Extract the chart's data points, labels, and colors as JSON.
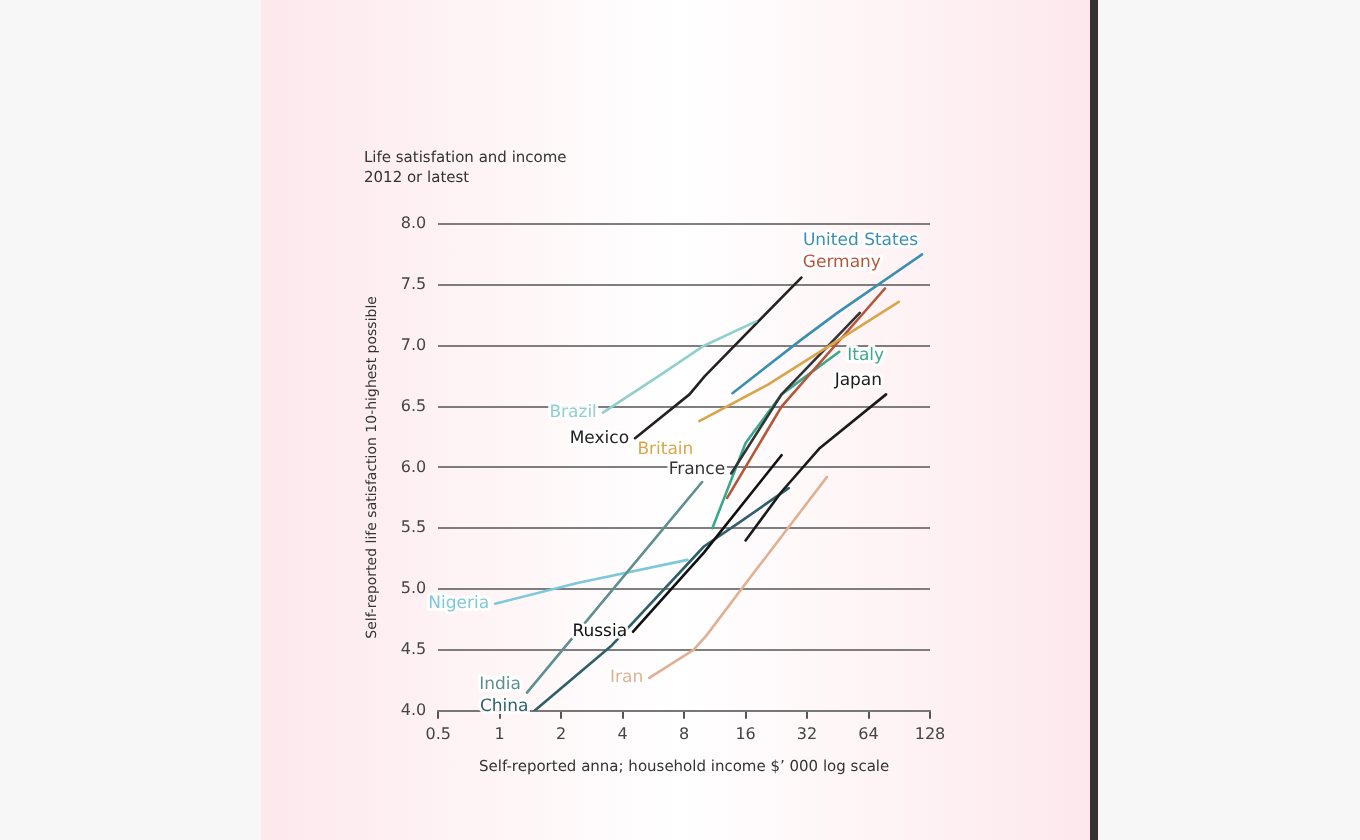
{
  "chart_data": {
    "type": "line",
    "title": "Life satisfation and income",
    "subtitle": "2012 or latest",
    "xlabel": "Self-reported anna; household income $’ 000 log scale",
    "ylabel": "Self-reported life satisfaction 10-highest possible",
    "log": "x",
    "xlim": [
      0.5,
      128
    ],
    "xticks": [
      0.5,
      1,
      2,
      4,
      8,
      16,
      32,
      64,
      128
    ],
    "ylim": [
      4,
      8
    ],
    "yticks": [
      {
        "value": 4,
        "label": "4.0"
      },
      {
        "value": 4.5,
        "label": "4.5"
      },
      {
        "value": 5,
        "label": "5.0"
      },
      {
        "value": 5.5,
        "label": "5.5"
      },
      {
        "value": 6,
        "label": "6.0"
      },
      {
        "value": 6.5,
        "label": "6.5"
      },
      {
        "value": 7,
        "label": "7.0"
      },
      {
        "value": 7.5,
        "label": "7.5"
      },
      {
        "value": 8,
        "label": "8.0"
      }
    ],
    "grid": "y",
    "legend": false,
    "marker": "none",
    "line_style": "solid",
    "series": [
      {
        "name": "Brazil",
        "color": "#8fcfcf",
        "x": [
          3.2,
          6,
          10,
          18
        ],
        "values": [
          6.45,
          6.75,
          7.0,
          7.2
        ]
      },
      {
        "name": "Mexico",
        "color": "#222222",
        "x": [
          4.6,
          8.5,
          10.1,
          30
        ],
        "values": [
          6.24,
          6.6,
          6.75,
          7.56
        ]
      },
      {
        "name": "United States",
        "color": "#3a8fb0",
        "x": [
          13.8,
          30,
          45,
          117
        ],
        "values": [
          6.61,
          7.05,
          7.27,
          7.75
        ]
      },
      {
        "name": "Britain",
        "color": "#d9a54a",
        "x": [
          9.5,
          20.6,
          90
        ],
        "values": [
          6.38,
          6.68,
          7.36
        ]
      },
      {
        "name": "Germany",
        "color": "#b5553a",
        "x": [
          13,
          24,
          77
        ],
        "values": [
          5.75,
          6.5,
          7.47
        ]
      },
      {
        "name": "France",
        "color": "#333333",
        "x": [
          13.6,
          24,
          58
        ],
        "values": [
          5.95,
          6.6,
          7.27
        ]
      },
      {
        "name": "Italy",
        "color": "#3aa88a",
        "x": [
          11,
          16,
          24,
          46
        ],
        "values": [
          5.5,
          6.2,
          6.6,
          6.95
        ]
      },
      {
        "name": "Japan",
        "color": "#1a1a1a",
        "x": [
          16,
          24,
          37,
          78
        ],
        "values": [
          5.4,
          5.8,
          6.16,
          6.6
        ]
      },
      {
        "name": "Russia",
        "color": "#111111",
        "x": [
          4.5,
          10,
          24
        ],
        "values": [
          4.65,
          5.3,
          6.1
        ]
      },
      {
        "name": "China",
        "color": "#2f5f6a",
        "x": [
          1.48,
          3.5,
          10,
          15.3,
          26
        ],
        "values": [
          4.0,
          4.53,
          5.35,
          5.56,
          5.83
        ]
      },
      {
        "name": "India",
        "color": "#5f8f90",
        "x": [
          1.36,
          9.8
        ],
        "values": [
          4.15,
          5.88
        ]
      },
      {
        "name": "Nigeria",
        "color": "#7ec8dc",
        "x": [
          0.95,
          2.4,
          8.3
        ],
        "values": [
          4.88,
          5.05,
          5.24
        ]
      },
      {
        "name": "Iran",
        "color": "#e0b090",
        "x": [
          5.4,
          8.9,
          10.3,
          15.9,
          40
        ],
        "values": [
          4.27,
          4.5,
          4.62,
          5.04,
          5.92
        ]
      }
    ]
  }
}
